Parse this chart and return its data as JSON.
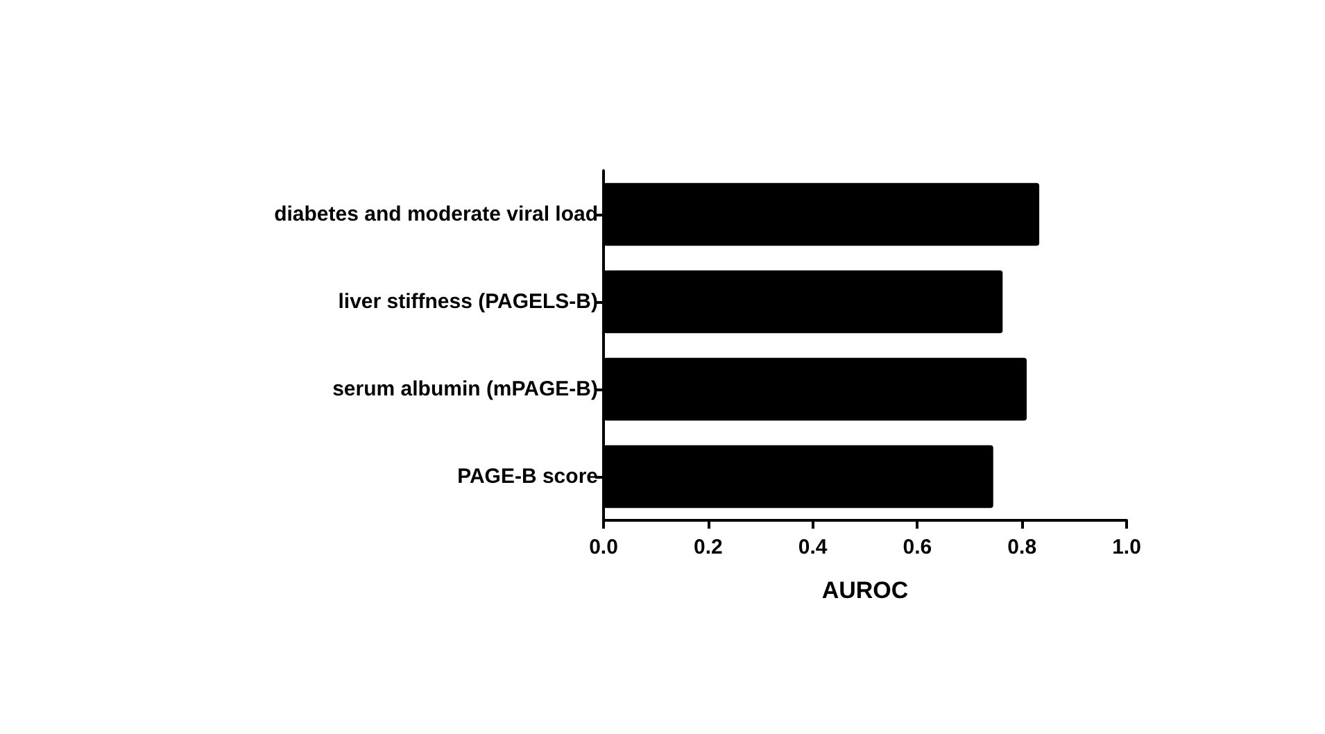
{
  "chart_data": {
    "type": "bar",
    "orientation": "horizontal",
    "xlabel": "AUROC",
    "categories": [
      "diabetes and moderate viral load",
      "liver stiffness (PAGELS-B)",
      "serum albumin (mPAGE-B)",
      "PAGE-B score"
    ],
    "values": [
      0.833,
      0.763,
      0.809,
      0.745
    ],
    "color": "#000000",
    "xlim": [
      0,
      1
    ],
    "xticks": [
      {
        "value": 0,
        "label": "0.0"
      },
      {
        "value": 0.2,
        "label": "0.2"
      },
      {
        "value": 0.4,
        "label": "0.4"
      },
      {
        "value": 0.6,
        "label": "0.6"
      },
      {
        "value": 0.8,
        "label": "0.8"
      },
      {
        "value": 1,
        "label": "1.0"
      }
    ],
    "grid": false
  }
}
